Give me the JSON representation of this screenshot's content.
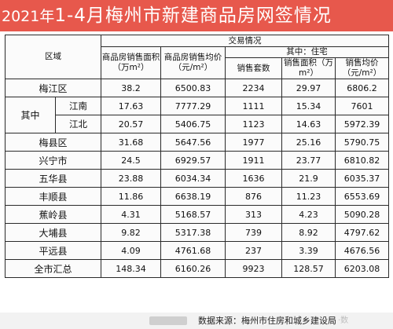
{
  "title": {
    "year": "2021年",
    "rest": "1-4月梅州市新建商品房网签情况"
  },
  "header": {
    "region": "区域",
    "trade": "交易情况",
    "area": "商品房销售面积（万m²）",
    "price": "商品房销售均价（元/m²）",
    "of_which_residential": "其中：住宅",
    "res_count": "销售套数",
    "res_area": "销售面积（万m²）",
    "res_price": "销售均价（元/m²）"
  },
  "of_which_label": "其中",
  "rows": [
    {
      "name": "梅江区",
      "area": "38.2",
      "price": "6500.83",
      "count": "2234",
      "res_area": "29.97",
      "res_price": "6806.2"
    },
    {
      "name": "江南",
      "area": "17.63",
      "price": "7777.29",
      "count": "1111",
      "res_area": "15.34",
      "res_price": "7601"
    },
    {
      "name": "江北",
      "area": "20.57",
      "price": "5406.75",
      "count": "1123",
      "res_area": "14.63",
      "res_price": "5972.39"
    },
    {
      "name": "梅县区",
      "area": "31.68",
      "price": "5647.56",
      "count": "1977",
      "res_area": "25.16",
      "res_price": "5790.75"
    },
    {
      "name": "兴宁市",
      "area": "24.5",
      "price": "6929.57",
      "count": "1911",
      "res_area": "23.77",
      "res_price": "6810.82"
    },
    {
      "name": "五华县",
      "area": "23.88",
      "price": "6034.34",
      "count": "1636",
      "res_area": "21.9",
      "res_price": "6035.37"
    },
    {
      "name": "丰顺县",
      "area": "11.86",
      "price": "6638.19",
      "count": "876",
      "res_area": "11.23",
      "res_price": "6553.69"
    },
    {
      "name": "蕉岭县",
      "area": "4.31",
      "price": "5168.57",
      "count": "313",
      "res_area": "4.23",
      "res_price": "5090.28"
    },
    {
      "name": "大埔县",
      "area": "9.82",
      "price": "5317.38",
      "count": "739",
      "res_area": "8.92",
      "res_price": "4797.62"
    },
    {
      "name": "平远县",
      "area": "4.09",
      "price": "4761.68",
      "count": "237",
      "res_area": "3.39",
      "res_price": "4676.56"
    },
    {
      "name": "全市汇总",
      "area": "148.34",
      "price": "6160.26",
      "count": "9923",
      "res_area": "128.57",
      "res_price": "6203.08"
    }
  ],
  "footer": {
    "source": "数据来源：梅州市住房和城乡建设局",
    "watermark": "·数"
  }
}
